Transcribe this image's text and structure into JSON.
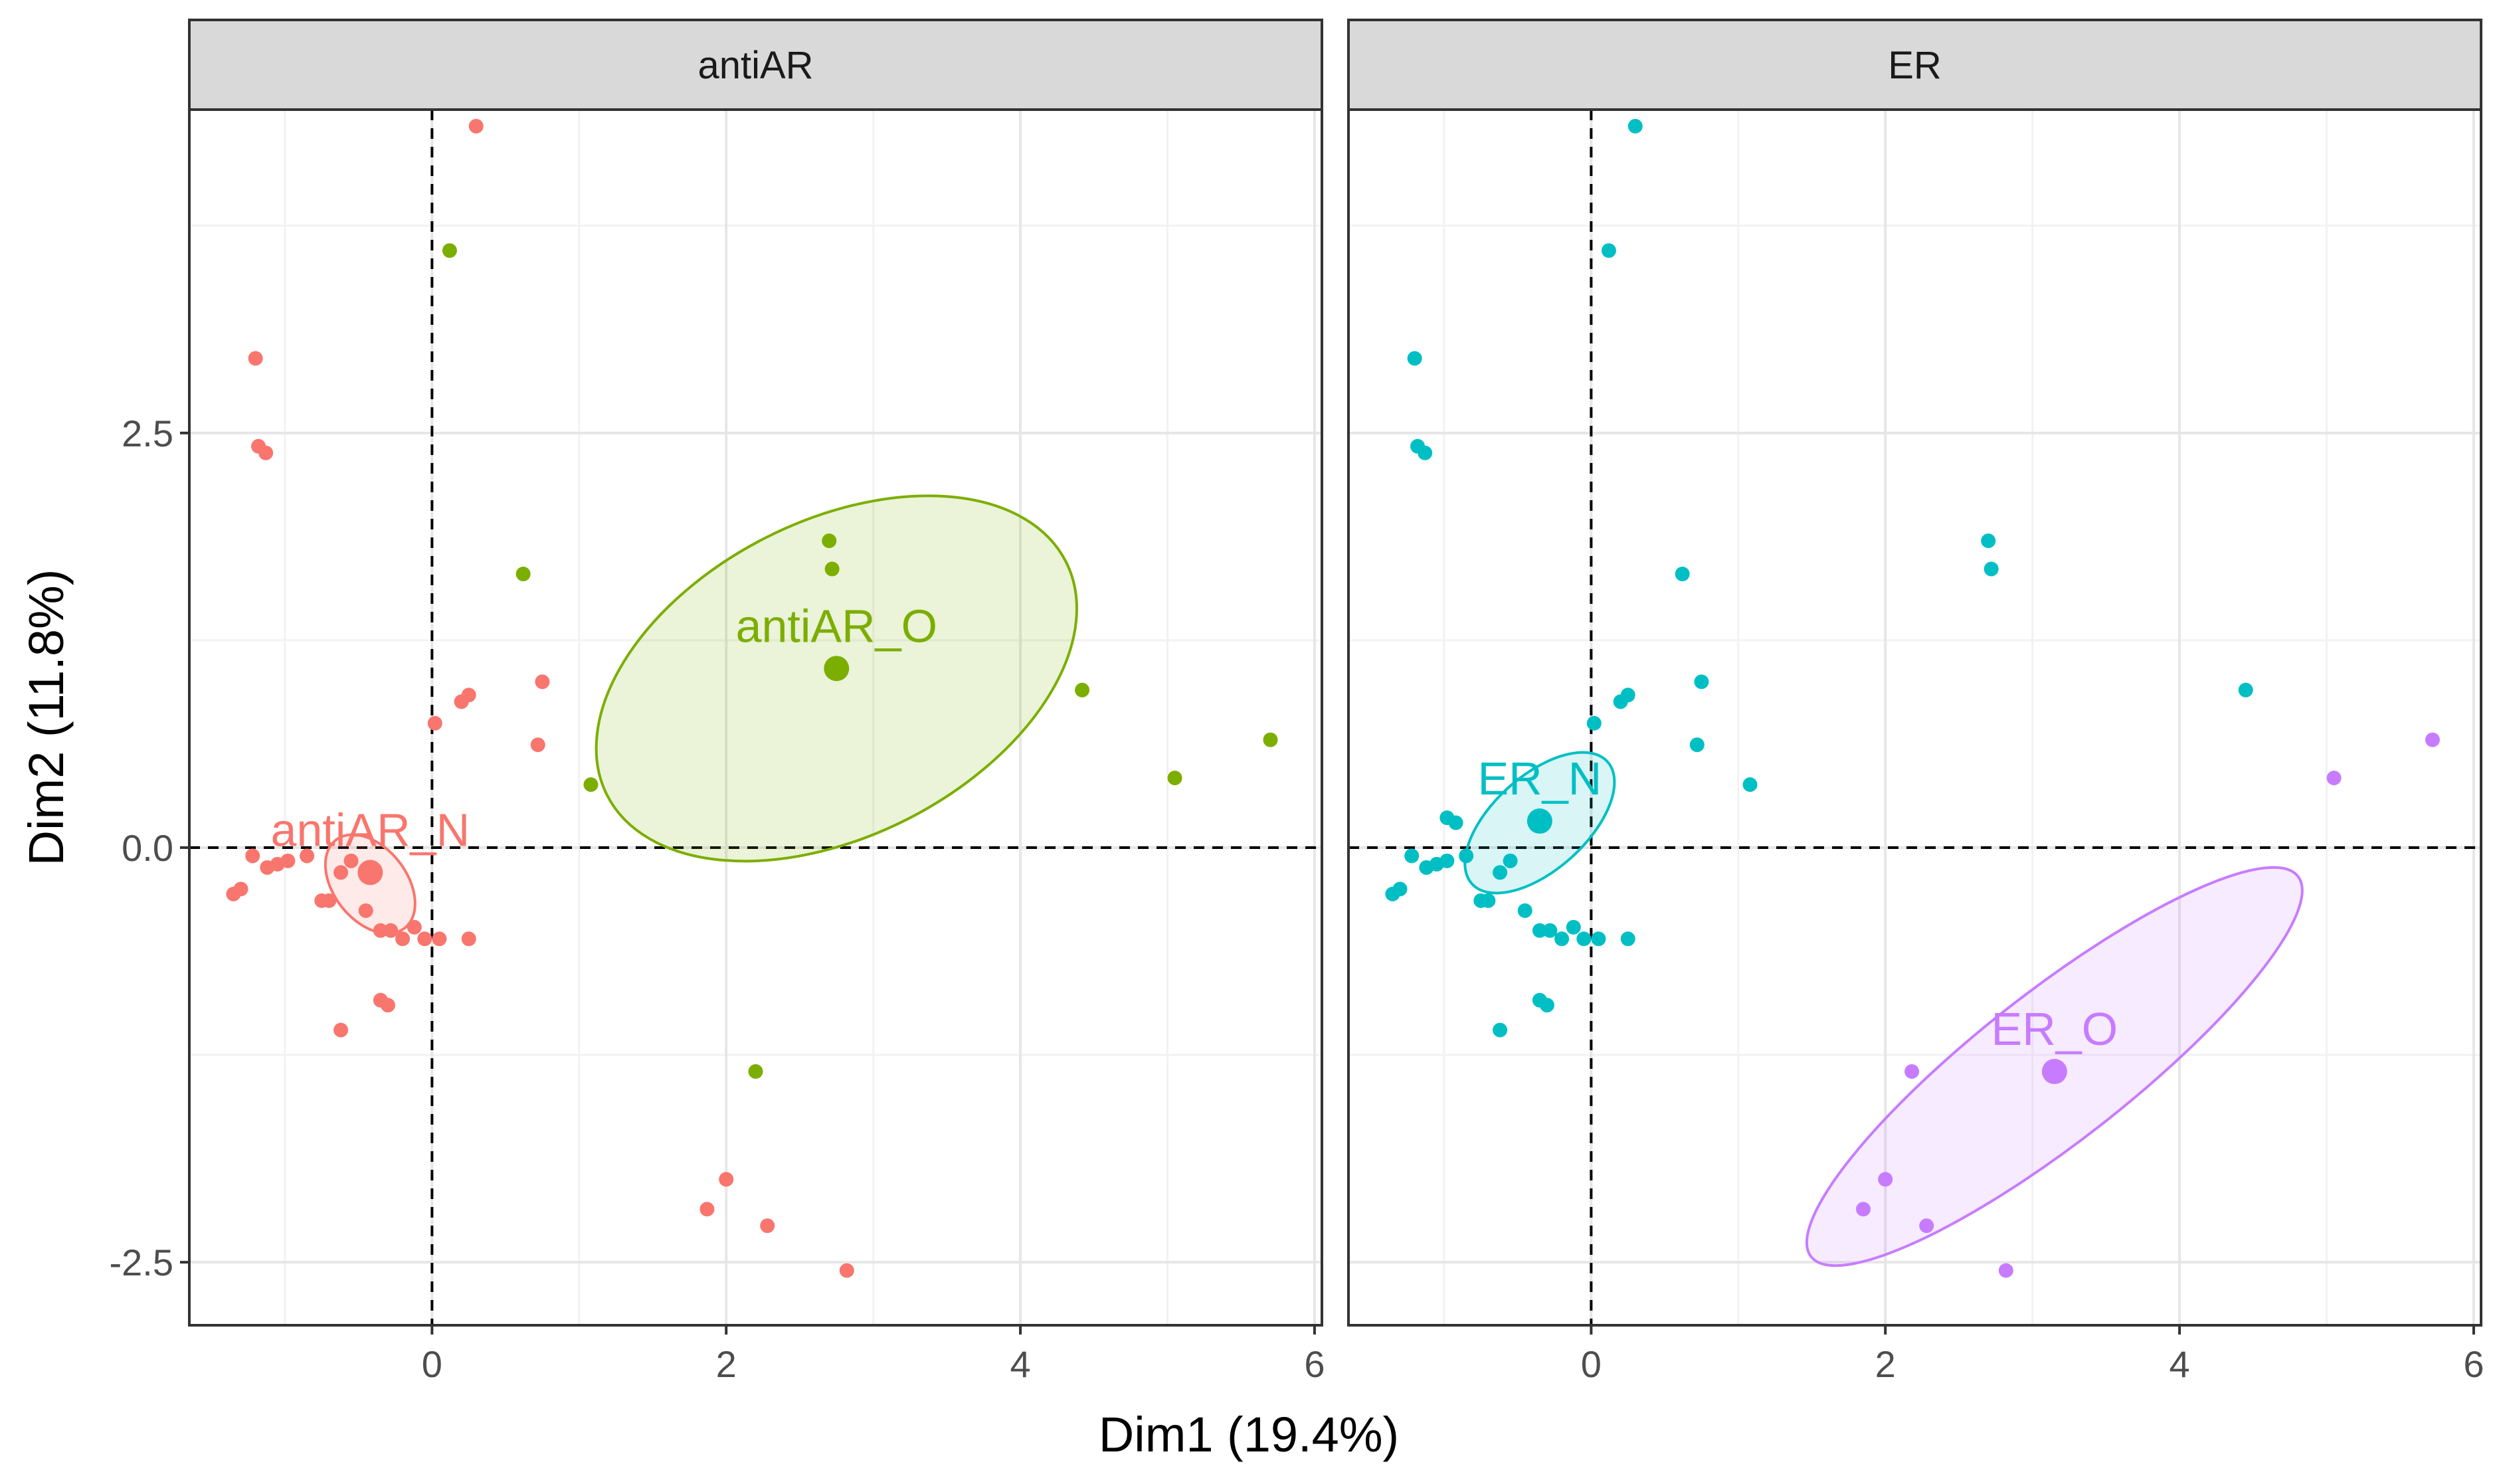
{
  "chart_data": {
    "type": "scatter",
    "x_axis_title": "Dim1 (19.4%)",
    "y_axis_title": "Dim2 (11.8%)",
    "xlim": [
      -1.65,
      6.05
    ],
    "ylim": [
      -2.88,
      4.45
    ],
    "x_ticks": [
      0,
      2,
      4,
      6
    ],
    "x_tick_labels": [
      "0",
      "2",
      "4",
      "6"
    ],
    "y_ticks": [
      -2.5,
      0.0,
      2.5
    ],
    "y_tick_labels": [
      "-2.5",
      "0.0",
      "2.5"
    ],
    "x_minor_gridlines": [
      -1,
      1,
      3,
      5
    ],
    "y_minor_gridlines": [
      -1.25,
      1.25,
      3.75
    ],
    "reference_lines": {
      "x": 0,
      "y": 0,
      "style": "dashed"
    },
    "panels": [
      {
        "strip": "antiAR",
        "groups": [
          {
            "name": "antiAR_N",
            "color": "#F8766D",
            "centroid": [
              -0.42,
              -0.15
            ],
            "ellipse": {
              "cx": -0.42,
              "cy": -0.22,
              "rx": 0.38,
              "ry": 0.22,
              "rotate_deg": 52
            },
            "points": [
              [
                0.3,
                4.35
              ],
              [
                -1.2,
                2.95
              ],
              [
                -1.18,
                2.42
              ],
              [
                -1.13,
                2.38
              ],
              [
                0.2,
                0.88
              ],
              [
                0.25,
                0.92
              ],
              [
                0.75,
                1.0
              ],
              [
                0.72,
                0.62
              ],
              [
                0.02,
                0.75
              ],
              [
                -1.35,
                -0.28
              ],
              [
                -1.3,
                -0.25
              ],
              [
                -1.22,
                -0.05
              ],
              [
                -1.12,
                -0.12
              ],
              [
                -1.05,
                -0.1
              ],
              [
                -0.98,
                -0.08
              ],
              [
                -0.85,
                -0.05
              ],
              [
                -0.75,
                -0.32
              ],
              [
                -0.7,
                -0.32
              ],
              [
                -0.62,
                -0.15
              ],
              [
                -0.55,
                -0.08
              ],
              [
                -0.45,
                -0.38
              ],
              [
                -0.35,
                -0.5
              ],
              [
                -0.28,
                -0.5
              ],
              [
                -0.2,
                -0.55
              ],
              [
                -0.12,
                -0.48
              ],
              [
                -0.05,
                -0.55
              ],
              [
                0.05,
                -0.55
              ],
              [
                0.25,
                -0.55
              ],
              [
                -0.3,
                -0.95
              ],
              [
                -0.35,
                -0.92
              ],
              [
                -0.62,
                -1.1
              ],
              [
                2.0,
                -2.0
              ],
              [
                1.87,
                -2.18
              ],
              [
                2.28,
                -2.28
              ],
              [
                2.82,
                -2.55
              ]
            ]
          },
          {
            "name": "antiAR_O",
            "color": "#7CAE00",
            "centroid": [
              2.75,
              1.08
            ],
            "ellipse": {
              "cx": 2.75,
              "cy": 1.02,
              "rx": 1.75,
              "ry": 0.95,
              "rotate_deg": -27
            },
            "points": [
              [
                0.12,
                3.6
              ],
              [
                2.7,
                1.85
              ],
              [
                2.72,
                1.68
              ],
              [
                0.62,
                1.65
              ],
              [
                4.42,
                0.95
              ],
              [
                5.7,
                0.65
              ],
              [
                5.05,
                0.42
              ],
              [
                1.08,
                0.38
              ],
              [
                2.2,
                -1.35
              ]
            ]
          }
        ]
      },
      {
        "strip": "ER",
        "groups": [
          {
            "name": "ER_N",
            "color": "#00BFC4",
            "centroid": [
              -0.35,
              0.16
            ],
            "ellipse": {
              "cx": -0.35,
              "cy": 0.15,
              "rx": 0.32,
              "ry": 0.55,
              "rotate_deg": 48
            },
            "points": [
              [
                0.3,
                4.35
              ],
              [
                0.12,
                3.6
              ],
              [
                -1.2,
                2.95
              ],
              [
                -1.18,
                2.42
              ],
              [
                -1.13,
                2.38
              ],
              [
                0.62,
                1.65
              ],
              [
                0.75,
                1.0
              ],
              [
                0.2,
                0.88
              ],
              [
                0.25,
                0.92
              ],
              [
                0.72,
                0.62
              ],
              [
                0.02,
                0.75
              ],
              [
                1.08,
                0.38
              ],
              [
                -1.35,
                -0.28
              ],
              [
                -1.3,
                -0.25
              ],
              [
                -1.22,
                -0.05
              ],
              [
                -1.12,
                -0.12
              ],
              [
                -1.05,
                -0.1
              ],
              [
                -0.98,
                -0.08
              ],
              [
                -0.85,
                -0.05
              ],
              [
                -0.75,
                -0.32
              ],
              [
                -0.7,
                -0.32
              ],
              [
                -0.62,
                -0.15
              ],
              [
                -0.55,
                -0.08
              ],
              [
                -0.45,
                -0.38
              ],
              [
                -0.35,
                -0.5
              ],
              [
                -0.28,
                -0.5
              ],
              [
                -0.2,
                -0.55
              ],
              [
                -0.12,
                -0.48
              ],
              [
                -0.05,
                -0.55
              ],
              [
                0.05,
                -0.55
              ],
              [
                0.25,
                -0.55
              ],
              [
                -0.3,
                -0.95
              ],
              [
                -0.35,
                -0.92
              ],
              [
                -0.62,
                -1.1
              ],
              [
                2.7,
                1.85
              ],
              [
                2.72,
                1.68
              ],
              [
                4.45,
                0.95
              ],
              [
                -0.92,
                0.15
              ],
              [
                -0.98,
                0.18
              ]
            ]
          },
          {
            "name": "ER_O",
            "color": "#C77CFF",
            "centroid": [
              3.15,
              -1.35
            ],
            "ellipse": {
              "cx": 3.15,
              "cy": -1.32,
              "rx": 2.1,
              "ry": 0.45,
              "rotate_deg": -38
            },
            "points": [
              [
                5.05,
                0.42
              ],
              [
                5.72,
                0.65
              ],
              [
                2.18,
                -1.35
              ],
              [
                2.0,
                -2.0
              ],
              [
                1.85,
                -2.18
              ],
              [
                2.28,
                -2.28
              ],
              [
                2.82,
                -2.55
              ]
            ]
          }
        ]
      }
    ]
  }
}
